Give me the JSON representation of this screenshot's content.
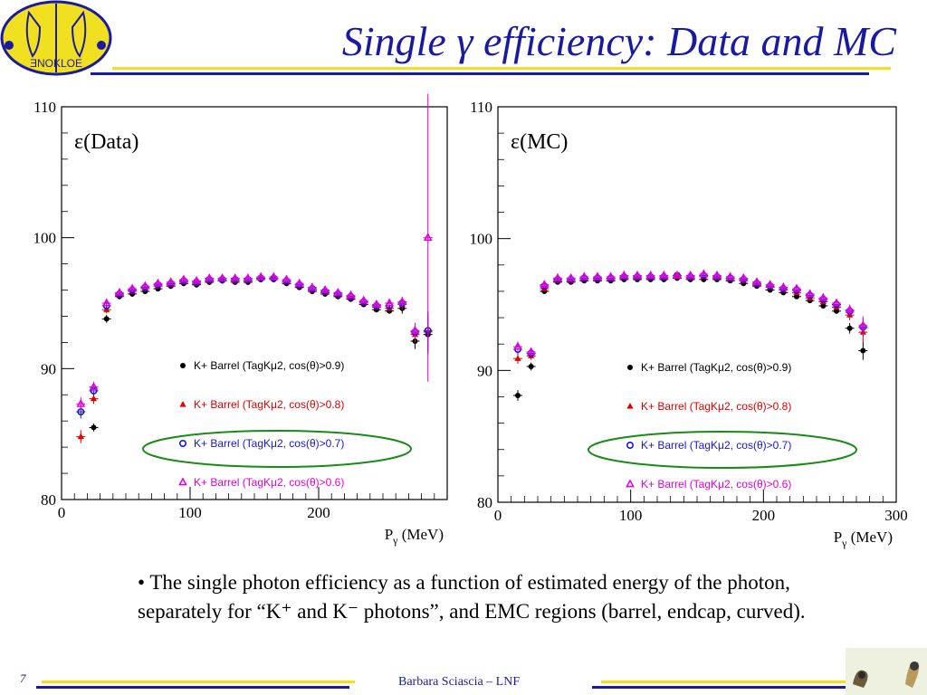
{
  "header": {
    "title": "Single γ efficiency: Data and MC",
    "logo_text": "ƎNOKLOE"
  },
  "colors": {
    "title": "#1a1aa0",
    "rule_yellow": "#f0e020",
    "rule_blue": "#1a1aa0",
    "ellipse_green": "#1a8a1a",
    "series": [
      "#000000",
      "#e00000",
      "#1818d0",
      "#e000e0"
    ]
  },
  "chart_data": [
    {
      "type": "scatter",
      "panel_label": "ε(Data)",
      "xlabel": "Pγ (MeV)",
      "xlabel_main": "P",
      "xlabel_sub": "γ",
      "xlabel_unit": " (MeV)",
      "xlim": [
        0,
        300
      ],
      "ylim": [
        80,
        110
      ],
      "x_ticks": [
        0,
        100,
        200
      ],
      "y_ticks": [
        80,
        90,
        100,
        110
      ],
      "legend_position": "bottom-right",
      "series": [
        {
          "name": "K+ Barrel (TagKμ2, cos(θ)>0.9)",
          "marker": "dot",
          "x": [
            15,
            25,
            35,
            45,
            55,
            65,
            75,
            85,
            95,
            105,
            115,
            125,
            135,
            145,
            155,
            165,
            175,
            185,
            195,
            205,
            215,
            225,
            235,
            245,
            255,
            265,
            275,
            285
          ],
          "y": [
            null,
            85.5,
            93.8,
            95.5,
            95.7,
            95.9,
            96.1,
            96.3,
            96.5,
            96.4,
            96.6,
            96.7,
            96.6,
            96.6,
            96.8,
            96.8,
            96.5,
            96.2,
            95.9,
            95.7,
            95.5,
            95.3,
            94.9,
            94.5,
            94.4,
            94.6,
            92.1,
            92.6
          ],
          "err": [
            0,
            0.3,
            0.3,
            0.2,
            0.2,
            0.2,
            0.2,
            0.2,
            0.2,
            0.2,
            0.2,
            0.2,
            0.2,
            0.2,
            0.2,
            0.2,
            0.2,
            0.2,
            0.2,
            0.2,
            0.2,
            0.2,
            0.2,
            0.2,
            0.2,
            0.4,
            0.6,
            1.5
          ]
        },
        {
          "name": "K+ Barrel (TagKμ2, cos(θ)>0.8)",
          "marker": "triangle",
          "x": [
            15,
            25,
            35,
            45,
            55,
            65,
            75,
            85,
            95,
            105,
            115,
            125,
            135,
            145,
            155,
            165,
            175,
            185,
            195,
            205,
            215,
            225,
            235,
            245,
            255,
            265,
            275,
            285
          ],
          "y": [
            84.8,
            87.7,
            94.5,
            95.6,
            95.9,
            96.1,
            96.3,
            96.4,
            96.6,
            96.5,
            96.7,
            96.8,
            96.7,
            96.7,
            96.9,
            96.9,
            96.6,
            96.3,
            96.0,
            95.8,
            95.6,
            95.4,
            95.0,
            94.7,
            94.6,
            94.9,
            92.6,
            92.8
          ],
          "err": [
            0.5,
            0.4,
            0.3,
            0.2,
            0.2,
            0.2,
            0.2,
            0.2,
            0.2,
            0.2,
            0.2,
            0.2,
            0.2,
            0.2,
            0.2,
            0.2,
            0.2,
            0.2,
            0.2,
            0.2,
            0.2,
            0.2,
            0.2,
            0.2,
            0.2,
            0.4,
            0.6,
            1.5
          ]
        },
        {
          "name": "K+ Barrel (TagKμ2, cos(θ)>0.7)",
          "marker": "circle",
          "x": [
            15,
            25,
            35,
            45,
            55,
            65,
            75,
            85,
            95,
            105,
            115,
            125,
            135,
            145,
            155,
            165,
            175,
            185,
            195,
            205,
            215,
            225,
            235,
            245,
            255,
            265,
            275,
            285
          ],
          "y": [
            86.7,
            88.3,
            94.8,
            95.7,
            96.0,
            96.2,
            96.4,
            96.5,
            96.7,
            96.6,
            96.8,
            96.8,
            96.8,
            96.8,
            96.9,
            96.9,
            96.7,
            96.4,
            96.1,
            95.9,
            95.7,
            95.5,
            95.1,
            94.8,
            94.8,
            95.0,
            92.8,
            92.9
          ],
          "err": [
            0.5,
            0.4,
            0.3,
            0.2,
            0.2,
            0.2,
            0.2,
            0.2,
            0.2,
            0.2,
            0.2,
            0.2,
            0.2,
            0.2,
            0.2,
            0.2,
            0.2,
            0.2,
            0.2,
            0.2,
            0.2,
            0.2,
            0.2,
            0.2,
            0.2,
            0.4,
            0.6,
            1.5
          ]
        },
        {
          "name": "K+ Barrel (TagKμ2, cos(θ)>0.6)",
          "marker": "triangle-open",
          "x": [
            15,
            25,
            35,
            45,
            55,
            65,
            75,
            85,
            95,
            105,
            115,
            125,
            135,
            145,
            155,
            165,
            175,
            185,
            195,
            205,
            215,
            225,
            235,
            245,
            255,
            265,
            275,
            285
          ],
          "y": [
            87.3,
            88.6,
            95.0,
            95.8,
            96.1,
            96.3,
            96.5,
            96.6,
            96.8,
            96.7,
            96.9,
            96.9,
            96.9,
            96.9,
            97.0,
            97.0,
            96.8,
            96.5,
            96.2,
            96.0,
            95.8,
            95.6,
            95.2,
            94.9,
            95.0,
            95.1,
            92.9,
            100.0
          ],
          "err": [
            0.5,
            0.4,
            0.3,
            0.2,
            0.2,
            0.2,
            0.2,
            0.2,
            0.2,
            0.2,
            0.2,
            0.2,
            0.2,
            0.2,
            0.2,
            0.2,
            0.2,
            0.2,
            0.2,
            0.2,
            0.2,
            0.2,
            0.2,
            0.2,
            0.2,
            0.4,
            0.6,
            11.0
          ]
        }
      ]
    },
    {
      "type": "scatter",
      "panel_label": "ε(MC)",
      "xlabel": "Pγ (MeV)",
      "xlabel_main": "P",
      "xlabel_sub": "γ",
      "xlabel_unit": " (MeV)",
      "xlim": [
        0,
        300
      ],
      "ylim": [
        80,
        110
      ],
      "x_ticks": [
        0,
        100,
        200,
        300
      ],
      "y_ticks": [
        80,
        90,
        100,
        110
      ],
      "legend_position": "bottom-right",
      "series": [
        {
          "name": "K+ Barrel (TagKμ2, cos(θ)>0.9)",
          "marker": "dot",
          "x": [
            15,
            25,
            35,
            45,
            55,
            65,
            75,
            85,
            95,
            105,
            115,
            125,
            135,
            145,
            155,
            165,
            175,
            185,
            195,
            205,
            215,
            225,
            235,
            245,
            255,
            265,
            275
          ],
          "y": [
            88.1,
            90.3,
            96.0,
            96.7,
            96.7,
            96.8,
            96.8,
            96.8,
            96.9,
            96.9,
            96.9,
            96.9,
            97.0,
            96.9,
            96.9,
            96.9,
            96.8,
            96.6,
            96.4,
            96.1,
            95.9,
            95.6,
            95.3,
            94.9,
            94.5,
            93.2,
            91.5
          ],
          "err": [
            0.4,
            0.3,
            0.2,
            0.1,
            0.1,
            0.1,
            0.1,
            0.1,
            0.1,
            0.1,
            0.1,
            0.1,
            0.1,
            0.1,
            0.1,
            0.1,
            0.1,
            0.1,
            0.1,
            0.1,
            0.1,
            0.1,
            0.1,
            0.2,
            0.2,
            0.4,
            0.7
          ]
        },
        {
          "name": "K+ Barrel (TagKμ2, cos(θ)>0.8)",
          "marker": "triangle",
          "x": [
            15,
            25,
            35,
            45,
            55,
            65,
            75,
            85,
            95,
            105,
            115,
            125,
            135,
            145,
            155,
            165,
            175,
            185,
            195,
            205,
            215,
            225,
            235,
            245,
            255,
            265,
            275
          ],
          "y": [
            90.9,
            91.1,
            96.2,
            96.8,
            96.8,
            96.9,
            96.9,
            96.9,
            97.0,
            97.0,
            97.0,
            97.0,
            97.1,
            97.0,
            97.1,
            97.0,
            96.9,
            96.8,
            96.5,
            96.3,
            96.1,
            95.9,
            95.5,
            95.2,
            94.8,
            94.2,
            92.9
          ],
          "err": [
            0.4,
            0.3,
            0.2,
            0.1,
            0.1,
            0.1,
            0.1,
            0.1,
            0.1,
            0.1,
            0.1,
            0.1,
            0.1,
            0.1,
            0.1,
            0.1,
            0.1,
            0.1,
            0.1,
            0.1,
            0.1,
            0.1,
            0.1,
            0.2,
            0.2,
            0.4,
            0.7
          ]
        },
        {
          "name": "K+ Barrel (TagKμ2, cos(θ)>0.7)",
          "marker": "circle",
          "x": [
            15,
            25,
            35,
            45,
            55,
            65,
            75,
            85,
            95,
            105,
            115,
            125,
            135,
            145,
            155,
            165,
            175,
            185,
            195,
            205,
            215,
            225,
            235,
            245,
            255,
            265,
            275
          ],
          "y": [
            91.6,
            91.3,
            96.4,
            96.9,
            96.9,
            97.0,
            97.0,
            97.0,
            97.1,
            97.1,
            97.1,
            97.1,
            97.2,
            97.1,
            97.2,
            97.1,
            97.0,
            96.9,
            96.6,
            96.4,
            96.2,
            96.1,
            95.7,
            95.4,
            95.0,
            94.5,
            93.3
          ],
          "err": [
            0.4,
            0.3,
            0.2,
            0.1,
            0.1,
            0.1,
            0.1,
            0.1,
            0.1,
            0.1,
            0.1,
            0.1,
            0.1,
            0.1,
            0.1,
            0.1,
            0.1,
            0.1,
            0.1,
            0.1,
            0.1,
            0.1,
            0.1,
            0.2,
            0.2,
            0.4,
            0.7
          ]
        },
        {
          "name": "K+ Barrel (TagKμ2, cos(θ)>0.6)",
          "marker": "triangle-open",
          "x": [
            15,
            25,
            35,
            45,
            55,
            65,
            75,
            85,
            95,
            105,
            115,
            125,
            135,
            145,
            155,
            165,
            175,
            185,
            195,
            205,
            215,
            225,
            235,
            245,
            255,
            265,
            275
          ],
          "y": [
            91.8,
            91.4,
            96.5,
            97.0,
            97.0,
            97.1,
            97.1,
            97.1,
            97.2,
            97.2,
            97.2,
            97.2,
            97.2,
            97.2,
            97.3,
            97.2,
            97.1,
            97.0,
            96.7,
            96.5,
            96.3,
            96.2,
            95.8,
            95.5,
            95.1,
            94.6,
            93.4
          ],
          "err": [
            0.4,
            0.3,
            0.2,
            0.1,
            0.1,
            0.1,
            0.1,
            0.1,
            0.1,
            0.1,
            0.1,
            0.1,
            0.1,
            0.1,
            0.1,
            0.1,
            0.1,
            0.1,
            0.1,
            0.1,
            0.1,
            0.1,
            0.1,
            0.2,
            0.2,
            0.4,
            0.7
          ]
        }
      ]
    }
  ],
  "body": {
    "bullet_text": "• The single photon efficiency as a function of estimated energy of the photon, separately for “K⁺ and K⁻ photons”, and EMC regions (barrel, endcap, curved)."
  },
  "footer": {
    "page_number": "7",
    "author": "Barbara Sciascia – LNF"
  }
}
